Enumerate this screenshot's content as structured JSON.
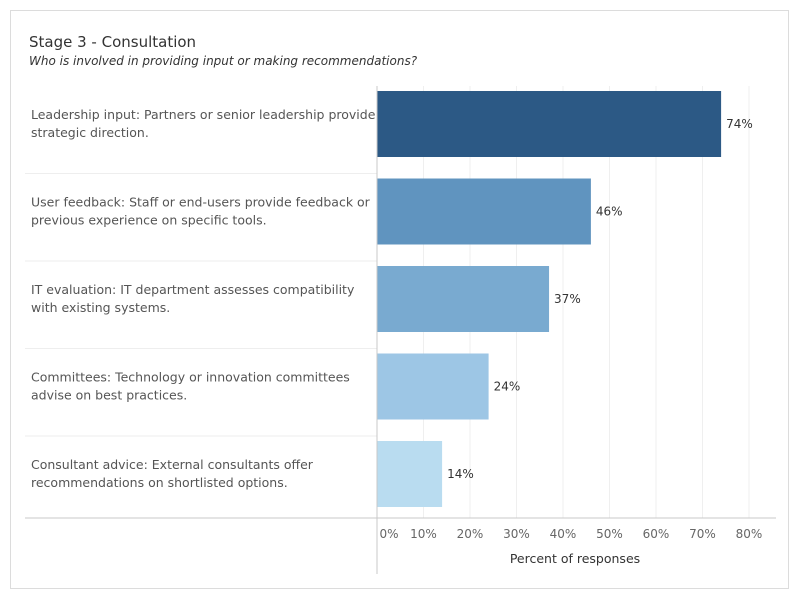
{
  "title": "Stage 3 - Consultation",
  "subtitle": "Who is involved in providing input or making recommendations?",
  "chart_data": {
    "type": "bar",
    "orientation": "horizontal",
    "categories": [
      [
        "Leadership input: Partners or senior leadership provide",
        "strategic direction."
      ],
      [
        "User feedback: Staff or end-users provide feedback or",
        "previous experience on specific tools."
      ],
      [
        "IT evaluation: IT department assesses compatibility",
        "with existing systems."
      ],
      [
        "Committees: Technology or innovation committees",
        "advise on best practices."
      ],
      [
        "Consultant advice: External consultants offer",
        "recommendations on shortlisted options."
      ]
    ],
    "values": [
      74,
      46,
      37,
      24,
      14
    ],
    "value_labels": [
      "74%",
      "46%",
      "37%",
      "24%",
      "14%"
    ],
    "colors": [
      "#2c5985",
      "#6094bf",
      "#79aad0",
      "#9dc6e5",
      "#b9dcf0"
    ],
    "xlabel": "Percent of responses",
    "xlim": [
      0,
      80
    ],
    "xticks": [
      0,
      10,
      20,
      30,
      40,
      50,
      60,
      70,
      80
    ],
    "xtick_labels": [
      "0%",
      "10%",
      "20%",
      "30%",
      "40%",
      "50%",
      "60%",
      "70%",
      "80%"
    ],
    "grid": true
  }
}
